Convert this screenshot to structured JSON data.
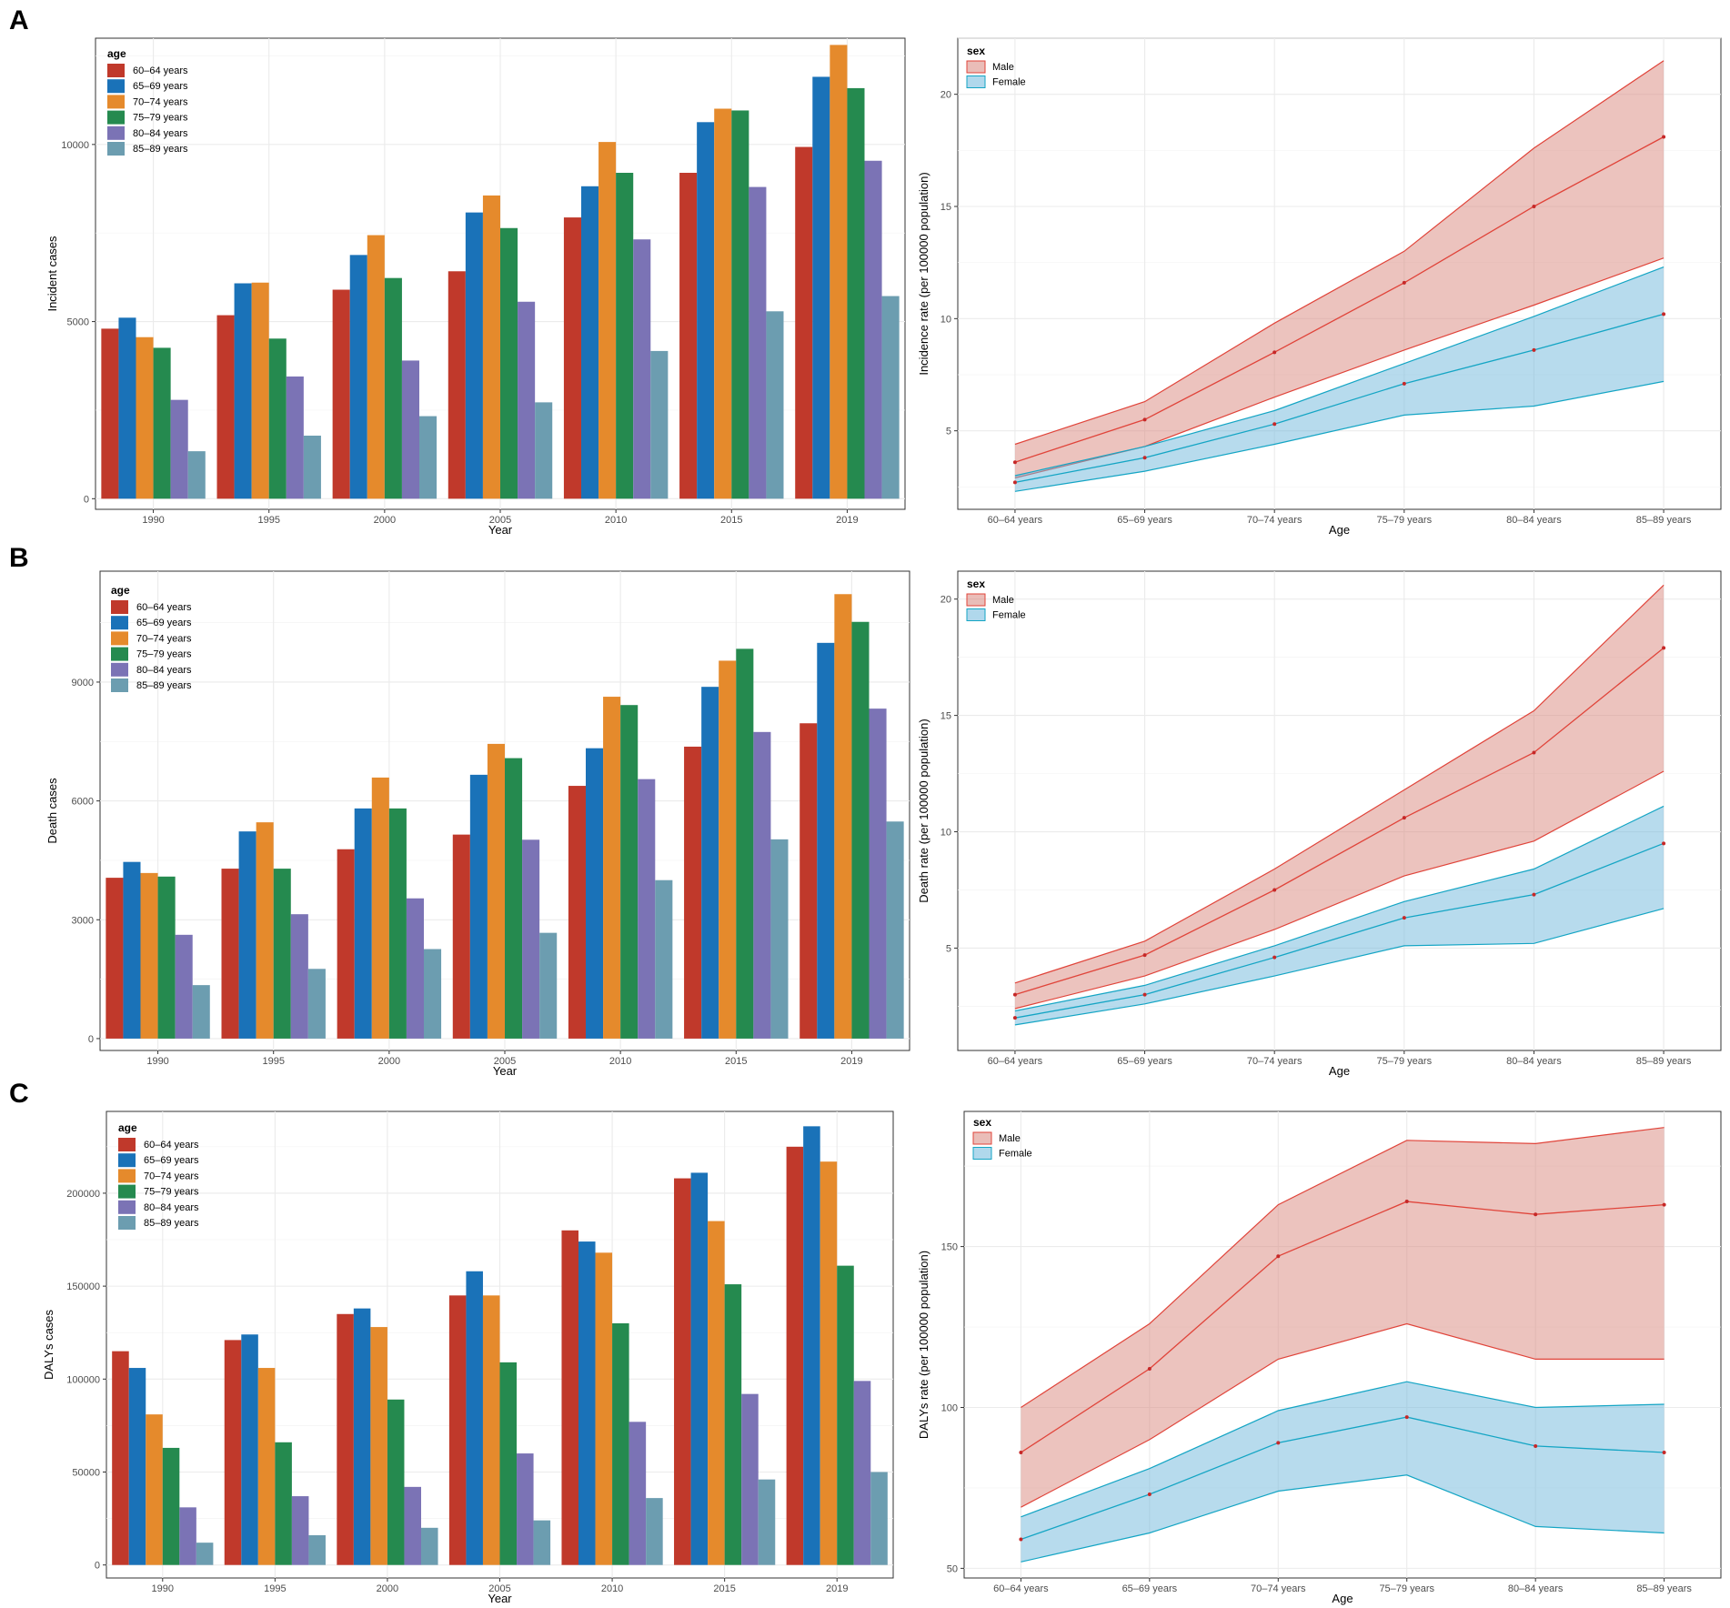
{
  "panels": [
    "A",
    "B",
    "C"
  ],
  "chart_data": [
    {
      "id": "A-left",
      "type": "bar",
      "panel": "A",
      "xlabel": "Year",
      "ylabel": "Incident cases",
      "categories": [
        "1990",
        "1995",
        "2000",
        "2005",
        "2010",
        "2015",
        "2019"
      ],
      "ylim": [
        -300,
        13000
      ],
      "yticks": [
        0,
        5000,
        10000
      ],
      "ytick_labels": [
        "0",
        "5000",
        "10000"
      ],
      "legend_title": "age",
      "series": [
        {
          "name": "60–64 years",
          "color": "#c0392b",
          "values": [
            4800,
            5180,
            5900,
            6420,
            7940,
            9200,
            9930
          ]
        },
        {
          "name": "65–69 years",
          "color": "#1a72b8",
          "values": [
            5110,
            6080,
            6880,
            8080,
            8820,
            10630,
            11910
          ]
        },
        {
          "name": "70–74 years",
          "color": "#e58a2c",
          "values": [
            4560,
            6100,
            7440,
            8560,
            10070,
            11010,
            12810
          ]
        },
        {
          "name": "75–79 years",
          "color": "#258a4f",
          "values": [
            4260,
            4520,
            6230,
            7640,
            9200,
            10960,
            11590
          ]
        },
        {
          "name": "80–84 years",
          "color": "#7b73b5",
          "values": [
            2790,
            3450,
            3900,
            5560,
            7320,
            8800,
            9540
          ]
        },
        {
          "name": "85–89 years",
          "color": "#6c9db0",
          "values": [
            1340,
            1780,
            2330,
            2720,
            4170,
            5290,
            5720
          ]
        }
      ]
    },
    {
      "id": "A-right",
      "type": "area",
      "panel": "A",
      "xlabel": "Age",
      "ylabel": "Incidence rate (per 100000 population)",
      "categories": [
        "60–64 years",
        "65–69 years",
        "70–74 years",
        "75–79 years",
        "80–84 years",
        "85–89 years"
      ],
      "ylim": [
        1.5,
        22.5
      ],
      "yticks": [
        5,
        10,
        15,
        20
      ],
      "ytick_labels": [
        "5",
        "10",
        "15",
        "20"
      ],
      "legend_title": "sex",
      "series": [
        {
          "name": "Male",
          "line": "#e0443a",
          "fill": "#d9877e",
          "values": [
            3.6,
            5.5,
            8.5,
            11.6,
            15.0,
            18.1
          ],
          "lower": [
            2.9,
            4.3,
            6.5,
            8.6,
            10.6,
            12.7
          ],
          "upper": [
            4.4,
            6.3,
            9.8,
            13.0,
            17.6,
            21.5
          ]
        },
        {
          "name": "Female",
          "line": "#14a5c4",
          "fill": "#6fb8dc",
          "values": [
            2.7,
            3.8,
            5.3,
            7.1,
            8.6,
            10.2
          ],
          "lower": [
            2.3,
            3.2,
            4.4,
            5.7,
            6.1,
            7.2
          ],
          "upper": [
            3.0,
            4.3,
            5.9,
            8.0,
            10.1,
            12.3
          ]
        }
      ]
    },
    {
      "id": "B-left",
      "type": "bar",
      "panel": "B",
      "xlabel": "Year",
      "ylabel": "Death cases",
      "categories": [
        "1990",
        "1995",
        "2000",
        "2005",
        "2010",
        "2015",
        "2019"
      ],
      "ylim": [
        -300,
        11800
      ],
      "yticks": [
        0,
        3000,
        6000,
        9000
      ],
      "ytick_labels": [
        "0",
        "3000",
        "6000",
        "9000"
      ],
      "legend_title": "age",
      "series": [
        {
          "name": "60–64 years",
          "color": "#c0392b",
          "values": [
            4060,
            4290,
            4780,
            5150,
            6380,
            7370,
            7960
          ]
        },
        {
          "name": "65–69 years",
          "color": "#1a72b8",
          "values": [
            4460,
            5230,
            5810,
            6660,
            7330,
            8880,
            9990
          ]
        },
        {
          "name": "70–74 years",
          "color": "#e58a2c",
          "values": [
            4180,
            5460,
            6590,
            7440,
            8630,
            9540,
            11220
          ]
        },
        {
          "name": "75–79 years",
          "color": "#258a4f",
          "values": [
            4090,
            4290,
            5810,
            7080,
            8420,
            9840,
            10520
          ]
        },
        {
          "name": "80–84 years",
          "color": "#7b73b5",
          "values": [
            2620,
            3140,
            3540,
            5020,
            6550,
            7740,
            8330
          ]
        },
        {
          "name": "85–89 years",
          "color": "#6c9db0",
          "values": [
            1350,
            1760,
            2260,
            2670,
            4000,
            5030,
            5480
          ]
        }
      ]
    },
    {
      "id": "B-right",
      "type": "area",
      "panel": "B",
      "xlabel": "Age",
      "ylabel": "Death rate (per 100000 population)",
      "categories": [
        "60–64 years",
        "65–69 years",
        "70–74 years",
        "75–79 years",
        "80–84 years",
        "85–89 years"
      ],
      "ylim": [
        0.6,
        21.2
      ],
      "yticks": [
        5,
        10,
        15,
        20
      ],
      "ytick_labels": [
        "5",
        "10",
        "15",
        "20"
      ],
      "legend_title": "sex",
      "series": [
        {
          "name": "Male",
          "line": "#e0443a",
          "fill": "#d9877e",
          "values": [
            3.0,
            4.7,
            7.5,
            10.6,
            13.4,
            17.9
          ],
          "lower": [
            2.4,
            3.8,
            5.8,
            8.1,
            9.6,
            12.6
          ],
          "upper": [
            3.5,
            5.3,
            8.4,
            11.8,
            15.2,
            20.6
          ]
        },
        {
          "name": "Female",
          "line": "#14a5c4",
          "fill": "#6fb8dc",
          "values": [
            2.0,
            3.0,
            4.6,
            6.3,
            7.3,
            9.5
          ],
          "lower": [
            1.7,
            2.6,
            3.8,
            5.1,
            5.2,
            6.7
          ],
          "upper": [
            2.3,
            3.4,
            5.1,
            7.0,
            8.4,
            11.1
          ]
        }
      ]
    },
    {
      "id": "C-left",
      "type": "bar",
      "panel": "C",
      "xlabel": "Year",
      "ylabel": "DALYs cases",
      "categories": [
        "1990",
        "1995",
        "2000",
        "2005",
        "2010",
        "2015",
        "2019"
      ],
      "ylim": [
        -7000,
        244000
      ],
      "yticks": [
        0,
        50000,
        100000,
        150000,
        200000
      ],
      "ytick_labels": [
        "0",
        "50000",
        "100000",
        "150000",
        "200000"
      ],
      "legend_title": "age",
      "series": [
        {
          "name": "60–64 years",
          "color": "#c0392b",
          "values": [
            115000,
            121000,
            135000,
            145000,
            180000,
            208000,
            225000
          ]
        },
        {
          "name": "65–69 years",
          "color": "#1a72b8",
          "values": [
            106000,
            124000,
            138000,
            158000,
            174000,
            211000,
            236000
          ]
        },
        {
          "name": "70–74 years",
          "color": "#e58a2c",
          "values": [
            81000,
            106000,
            128000,
            145000,
            168000,
            185000,
            217000
          ]
        },
        {
          "name": "75–79 years",
          "color": "#258a4f",
          "values": [
            63000,
            66000,
            89000,
            109000,
            130000,
            151000,
            161000
          ]
        },
        {
          "name": "80–84 years",
          "color": "#7b73b5",
          "values": [
            31000,
            37000,
            42000,
            60000,
            77000,
            92000,
            99000
          ]
        },
        {
          "name": "85–89 years",
          "color": "#6c9db0",
          "values": [
            12000,
            16000,
            20000,
            24000,
            36000,
            46000,
            50000
          ]
        }
      ]
    },
    {
      "id": "C-right",
      "type": "area",
      "panel": "C",
      "xlabel": "Age",
      "ylabel": "DALYs rate (per 100000 population)",
      "categories": [
        "60–64 years",
        "65–69 years",
        "70–74 years",
        "75–79 years",
        "80–84 years",
        "85–89 years"
      ],
      "ylim": [
        47,
        192
      ],
      "yticks": [
        50,
        100,
        150
      ],
      "ytick_labels": [
        "50",
        "100",
        "150"
      ],
      "legend_title": "sex",
      "series": [
        {
          "name": "Male",
          "line": "#e0443a",
          "fill": "#d9877e",
          "values": [
            86,
            112,
            147,
            164,
            160,
            163
          ],
          "lower": [
            69,
            90,
            115,
            126,
            115,
            115
          ],
          "upper": [
            100,
            126,
            163,
            183,
            182,
            187
          ],
          "band_upper_label": ""
        },
        {
          "name": "Female",
          "line": "#14a5c4",
          "fill": "#6fb8dc",
          "values": [
            59,
            73,
            89,
            97,
            88,
            86
          ],
          "lower": [
            52,
            61,
            74,
            79,
            63,
            61
          ],
          "upper": [
            66,
            81,
            99,
            108,
            100,
            101
          ]
        }
      ]
    }
  ]
}
